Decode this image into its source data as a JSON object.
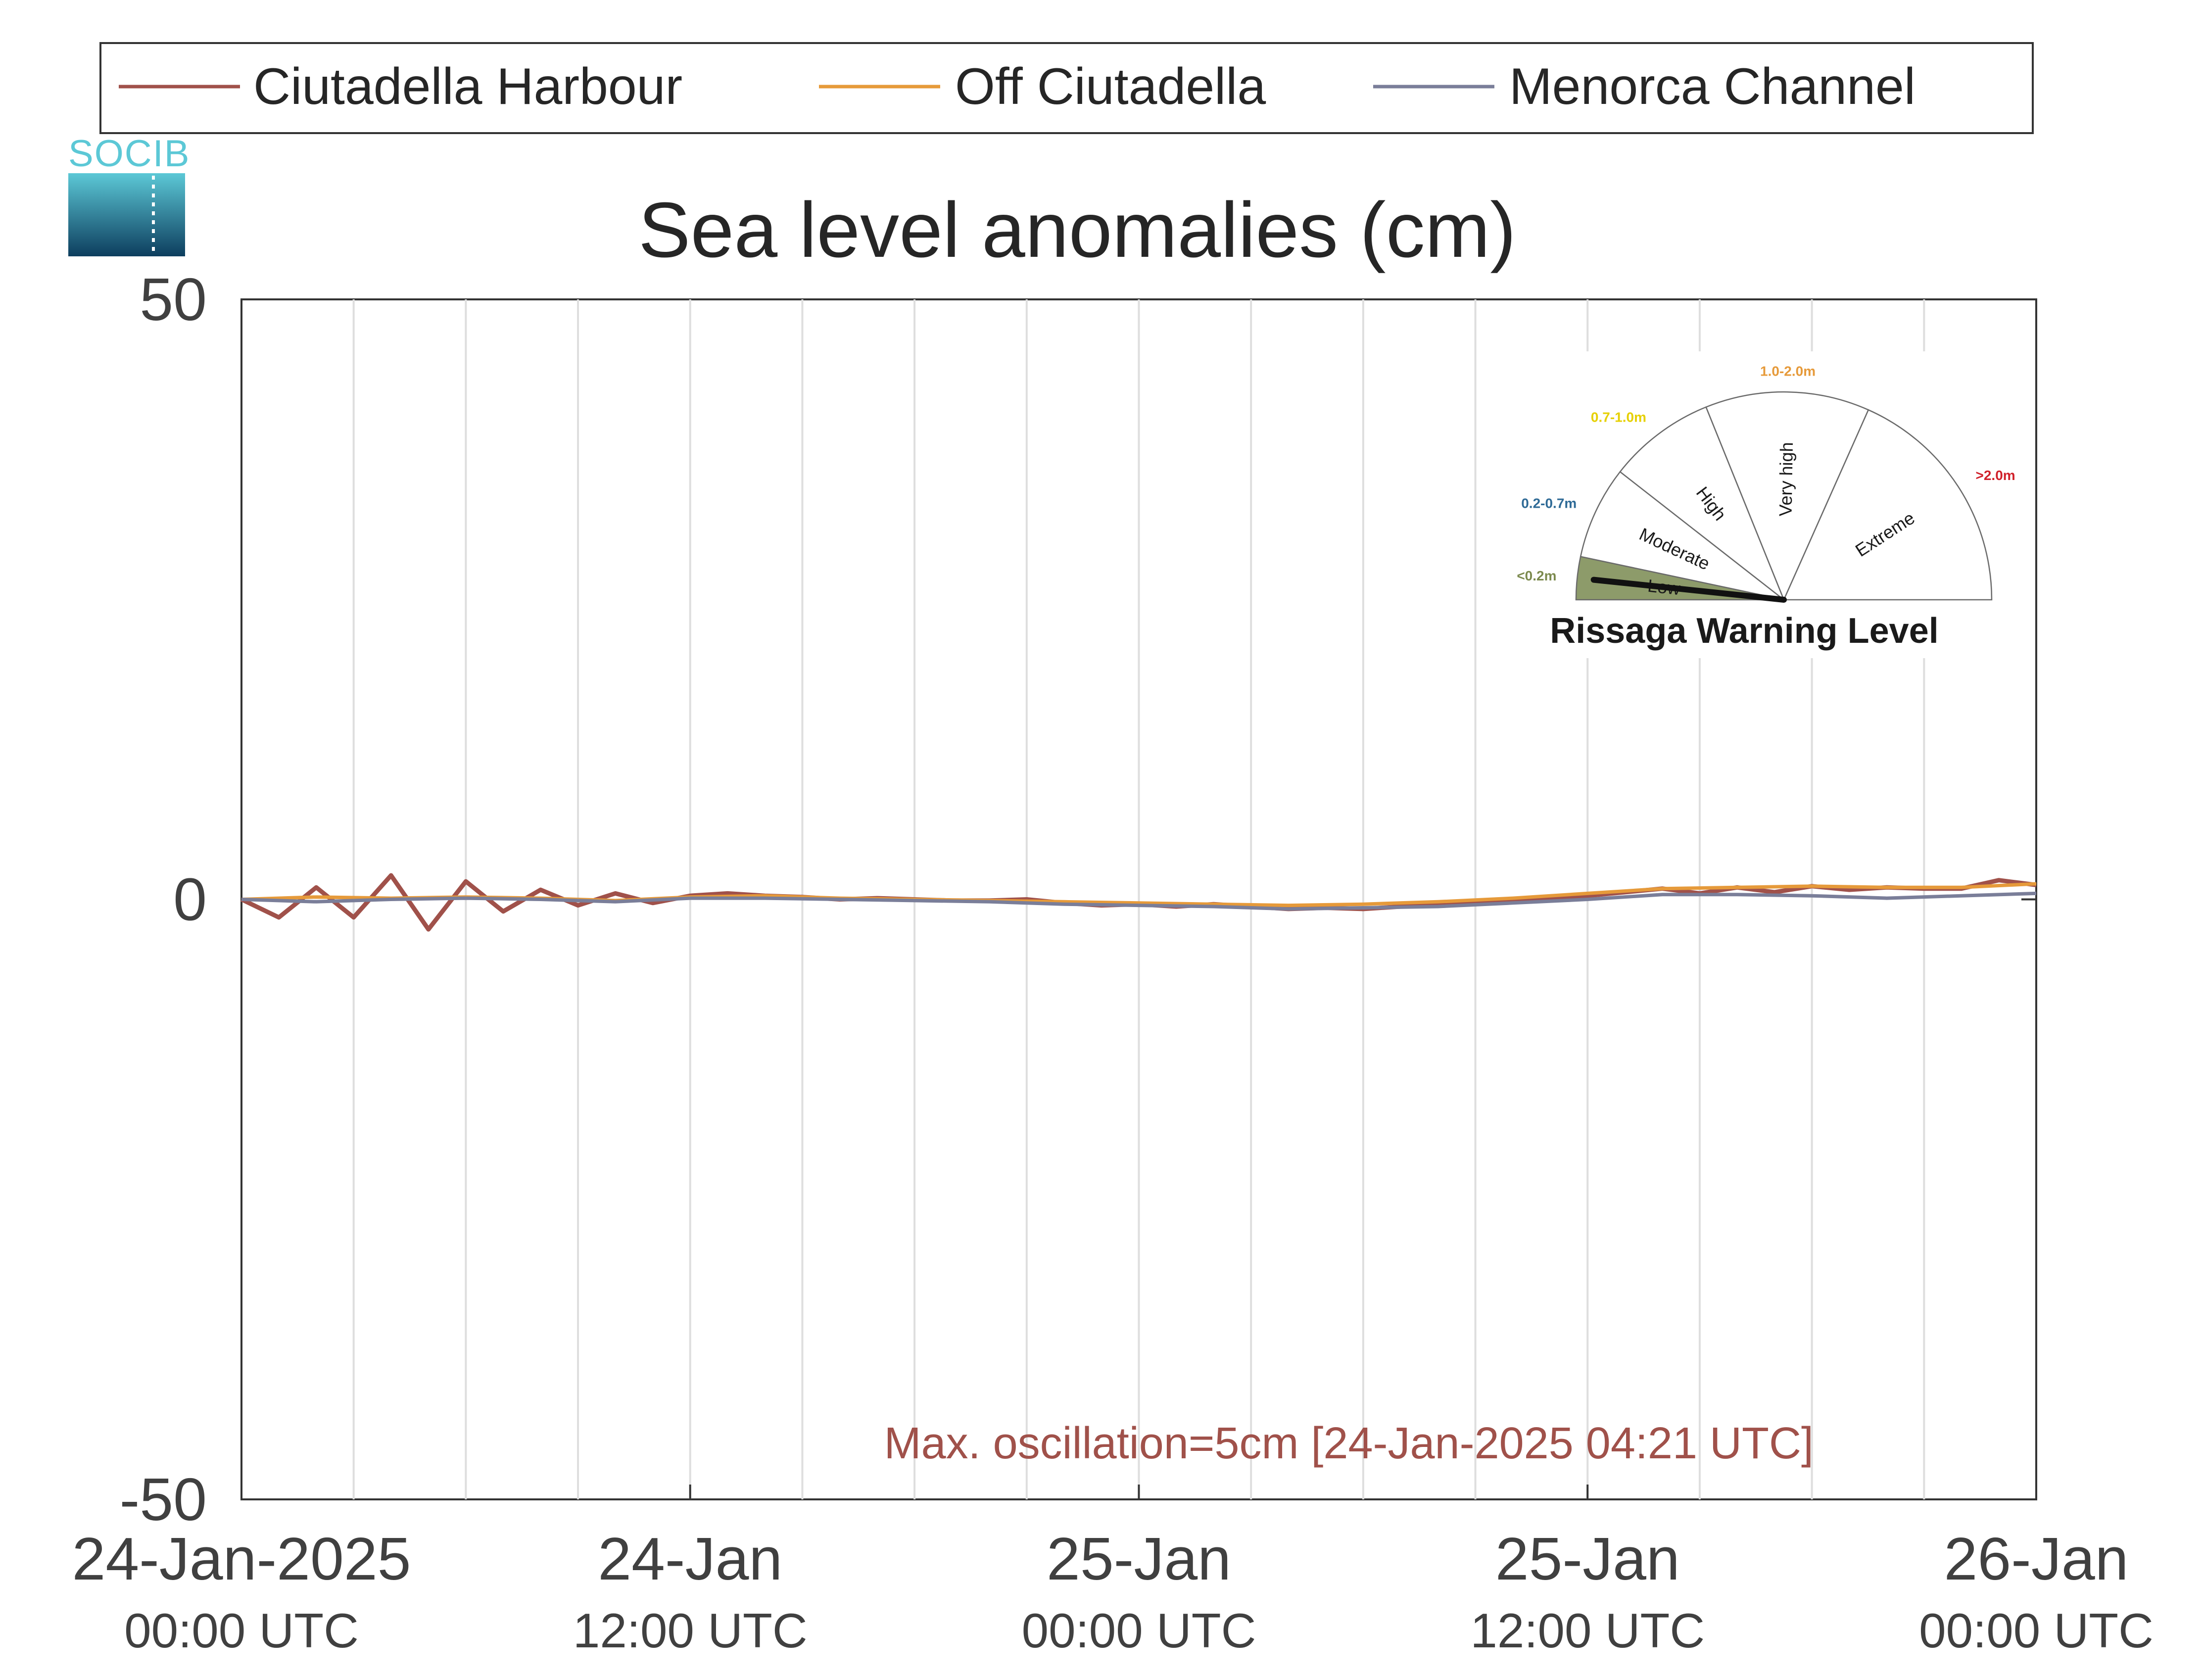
{
  "logo": {
    "text": "SOCIB"
  },
  "legend": {
    "items": [
      {
        "name": "Ciutadella Harbour",
        "color": "#a0514a"
      },
      {
        "name": "Off Ciutadella",
        "color": "#e69a3a"
      },
      {
        "name": "Menorca Channel",
        "color": "#7a7e99"
      }
    ]
  },
  "chart_data": {
    "type": "line",
    "title": "Sea level anomalies (cm)",
    "xlabel": "",
    "ylabel": "",
    "xlim": [
      "2025-01-24 00:00",
      "2025-01-26 00:00"
    ],
    "ylim": [
      -50,
      50
    ],
    "y_ticks": [
      50,
      0,
      -50
    ],
    "x_ticks": [
      {
        "time": "2025-01-24 00:00",
        "line1": "24-Jan-2025",
        "line2": "00:00 UTC"
      },
      {
        "time": "2025-01-24 12:00",
        "line1": "24-Jan",
        "line2": "12:00 UTC"
      },
      {
        "time": "2025-01-25 00:00",
        "line1": "25-Jan",
        "line2": "00:00 UTC"
      },
      {
        "time": "2025-01-25 12:00",
        "line1": "25-Jan",
        "line2": "12:00 UTC"
      },
      {
        "time": "2025-01-26 00:00",
        "line1": "26-Jan",
        "line2": "00:00 UTC"
      }
    ],
    "grid": "vertical",
    "legend_position": "top",
    "annotation": {
      "text": "Max. oscillation=5cm [24-Jan-2025 04:21 UTC]",
      "color": "#a0514a"
    },
    "series": [
      {
        "name": "Ciutadella Harbour",
        "color": "#a0514a",
        "x": [
          "2025-01-24 00:00",
          "2025-01-24 01:00",
          "2025-01-24 02:00",
          "2025-01-24 03:00",
          "2025-01-24 04:00",
          "2025-01-24 05:00",
          "2025-01-24 06:00",
          "2025-01-24 07:00",
          "2025-01-24 08:00",
          "2025-01-24 09:00",
          "2025-01-24 10:00",
          "2025-01-24 11:00",
          "2025-01-24 12:00",
          "2025-01-24 13:00",
          "2025-01-24 14:00",
          "2025-01-24 15:00",
          "2025-01-24 16:00",
          "2025-01-24 17:00",
          "2025-01-24 18:00",
          "2025-01-24 19:00",
          "2025-01-24 20:00",
          "2025-01-24 21:00",
          "2025-01-24 22:00",
          "2025-01-24 23:00",
          "2025-01-25 00:00",
          "2025-01-25 01:00",
          "2025-01-25 02:00",
          "2025-01-25 03:00",
          "2025-01-25 04:00",
          "2025-01-25 05:00",
          "2025-01-25 06:00",
          "2025-01-25 07:00",
          "2025-01-25 08:00",
          "2025-01-25 09:00",
          "2025-01-25 10:00",
          "2025-01-25 11:00",
          "2025-01-25 12:00",
          "2025-01-25 13:00",
          "2025-01-25 14:00",
          "2025-01-25 15:00",
          "2025-01-25 16:00",
          "2025-01-25 17:00",
          "2025-01-25 18:00",
          "2025-01-25 19:00",
          "2025-01-25 20:00",
          "2025-01-25 21:00",
          "2025-01-25 22:00",
          "2025-01-25 23:00",
          "2025-01-26 00:00"
        ],
        "values": [
          0,
          -1.5,
          1.0,
          -1.5,
          2.0,
          -2.5,
          1.5,
          -1.0,
          0.8,
          -0.5,
          0.5,
          -0.3,
          0.3,
          0.5,
          0.3,
          0.2,
          0,
          0.1,
          0,
          -0.1,
          -0.1,
          0,
          -0.3,
          -0.5,
          -0.4,
          -0.6,
          -0.4,
          -0.6,
          -0.8,
          -0.7,
          -0.8,
          -0.6,
          -0.4,
          -0.3,
          -0.1,
          0.1,
          0.3,
          0.6,
          0.9,
          0.5,
          1.0,
          0.6,
          1.1,
          0.8,
          1.0,
          0.9,
          0.9,
          1.6,
          1.2
        ]
      },
      {
        "name": "Off Ciutadella",
        "color": "#e69a3a",
        "x": [
          "2025-01-24 00:00",
          "2025-01-24 02:00",
          "2025-01-24 04:00",
          "2025-01-24 06:00",
          "2025-01-24 08:00",
          "2025-01-24 10:00",
          "2025-01-24 12:00",
          "2025-01-24 14:00",
          "2025-01-24 16:00",
          "2025-01-24 18:00",
          "2025-01-24 20:00",
          "2025-01-24 22:00",
          "2025-01-25 00:00",
          "2025-01-25 02:00",
          "2025-01-25 04:00",
          "2025-01-25 06:00",
          "2025-01-25 08:00",
          "2025-01-25 10:00",
          "2025-01-25 12:00",
          "2025-01-25 14:00",
          "2025-01-25 16:00",
          "2025-01-25 18:00",
          "2025-01-25 20:00",
          "2025-01-25 22:00",
          "2025-01-26 00:00"
        ],
        "values": [
          0,
          0.2,
          0.1,
          0.2,
          0.1,
          -0.1,
          0.2,
          0.3,
          0.1,
          0,
          -0.1,
          -0.2,
          -0.3,
          -0.4,
          -0.5,
          -0.4,
          -0.2,
          0.1,
          0.5,
          0.9,
          1.0,
          1.1,
          1.0,
          1.0,
          1.3
        ]
      },
      {
        "name": "Menorca Channel",
        "color": "#7a7e99",
        "x": [
          "2025-01-24 00:00",
          "2025-01-24 02:00",
          "2025-01-24 04:00",
          "2025-01-24 06:00",
          "2025-01-24 08:00",
          "2025-01-24 10:00",
          "2025-01-24 12:00",
          "2025-01-24 14:00",
          "2025-01-24 16:00",
          "2025-01-24 18:00",
          "2025-01-24 20:00",
          "2025-01-24 22:00",
          "2025-01-25 00:00",
          "2025-01-25 02:00",
          "2025-01-25 04:00",
          "2025-01-25 06:00",
          "2025-01-25 08:00",
          "2025-01-25 10:00",
          "2025-01-25 12:00",
          "2025-01-25 14:00",
          "2025-01-25 16:00",
          "2025-01-25 18:00",
          "2025-01-25 20:00",
          "2025-01-25 22:00",
          "2025-01-26 00:00"
        ],
        "values": [
          0,
          -0.2,
          0,
          0.1,
          0,
          -0.2,
          0.1,
          0.1,
          0,
          -0.1,
          -0.2,
          -0.4,
          -0.5,
          -0.6,
          -0.8,
          -0.7,
          -0.6,
          -0.3,
          0,
          0.4,
          0.4,
          0.3,
          0.1,
          0.3,
          0.5
        ]
      }
    ]
  },
  "gauge": {
    "title": "Rissaga Warning Level",
    "current_level": "Low",
    "sectors": [
      {
        "label": "Low",
        "range": "<0.2m",
        "range_color": "#7c8a4e"
      },
      {
        "label": "Moderate",
        "range": "0.2-0.7m",
        "range_color": "#2e6a96"
      },
      {
        "label": "High",
        "range": "0.7-1.0m",
        "range_color": "#e6d000"
      },
      {
        "label": "Very high",
        "range": "1.0-2.0m",
        "range_color": "#e69a3a"
      },
      {
        "label": "Extreme",
        "range": ">2.0m",
        "range_color": "#d0202a"
      }
    ]
  }
}
